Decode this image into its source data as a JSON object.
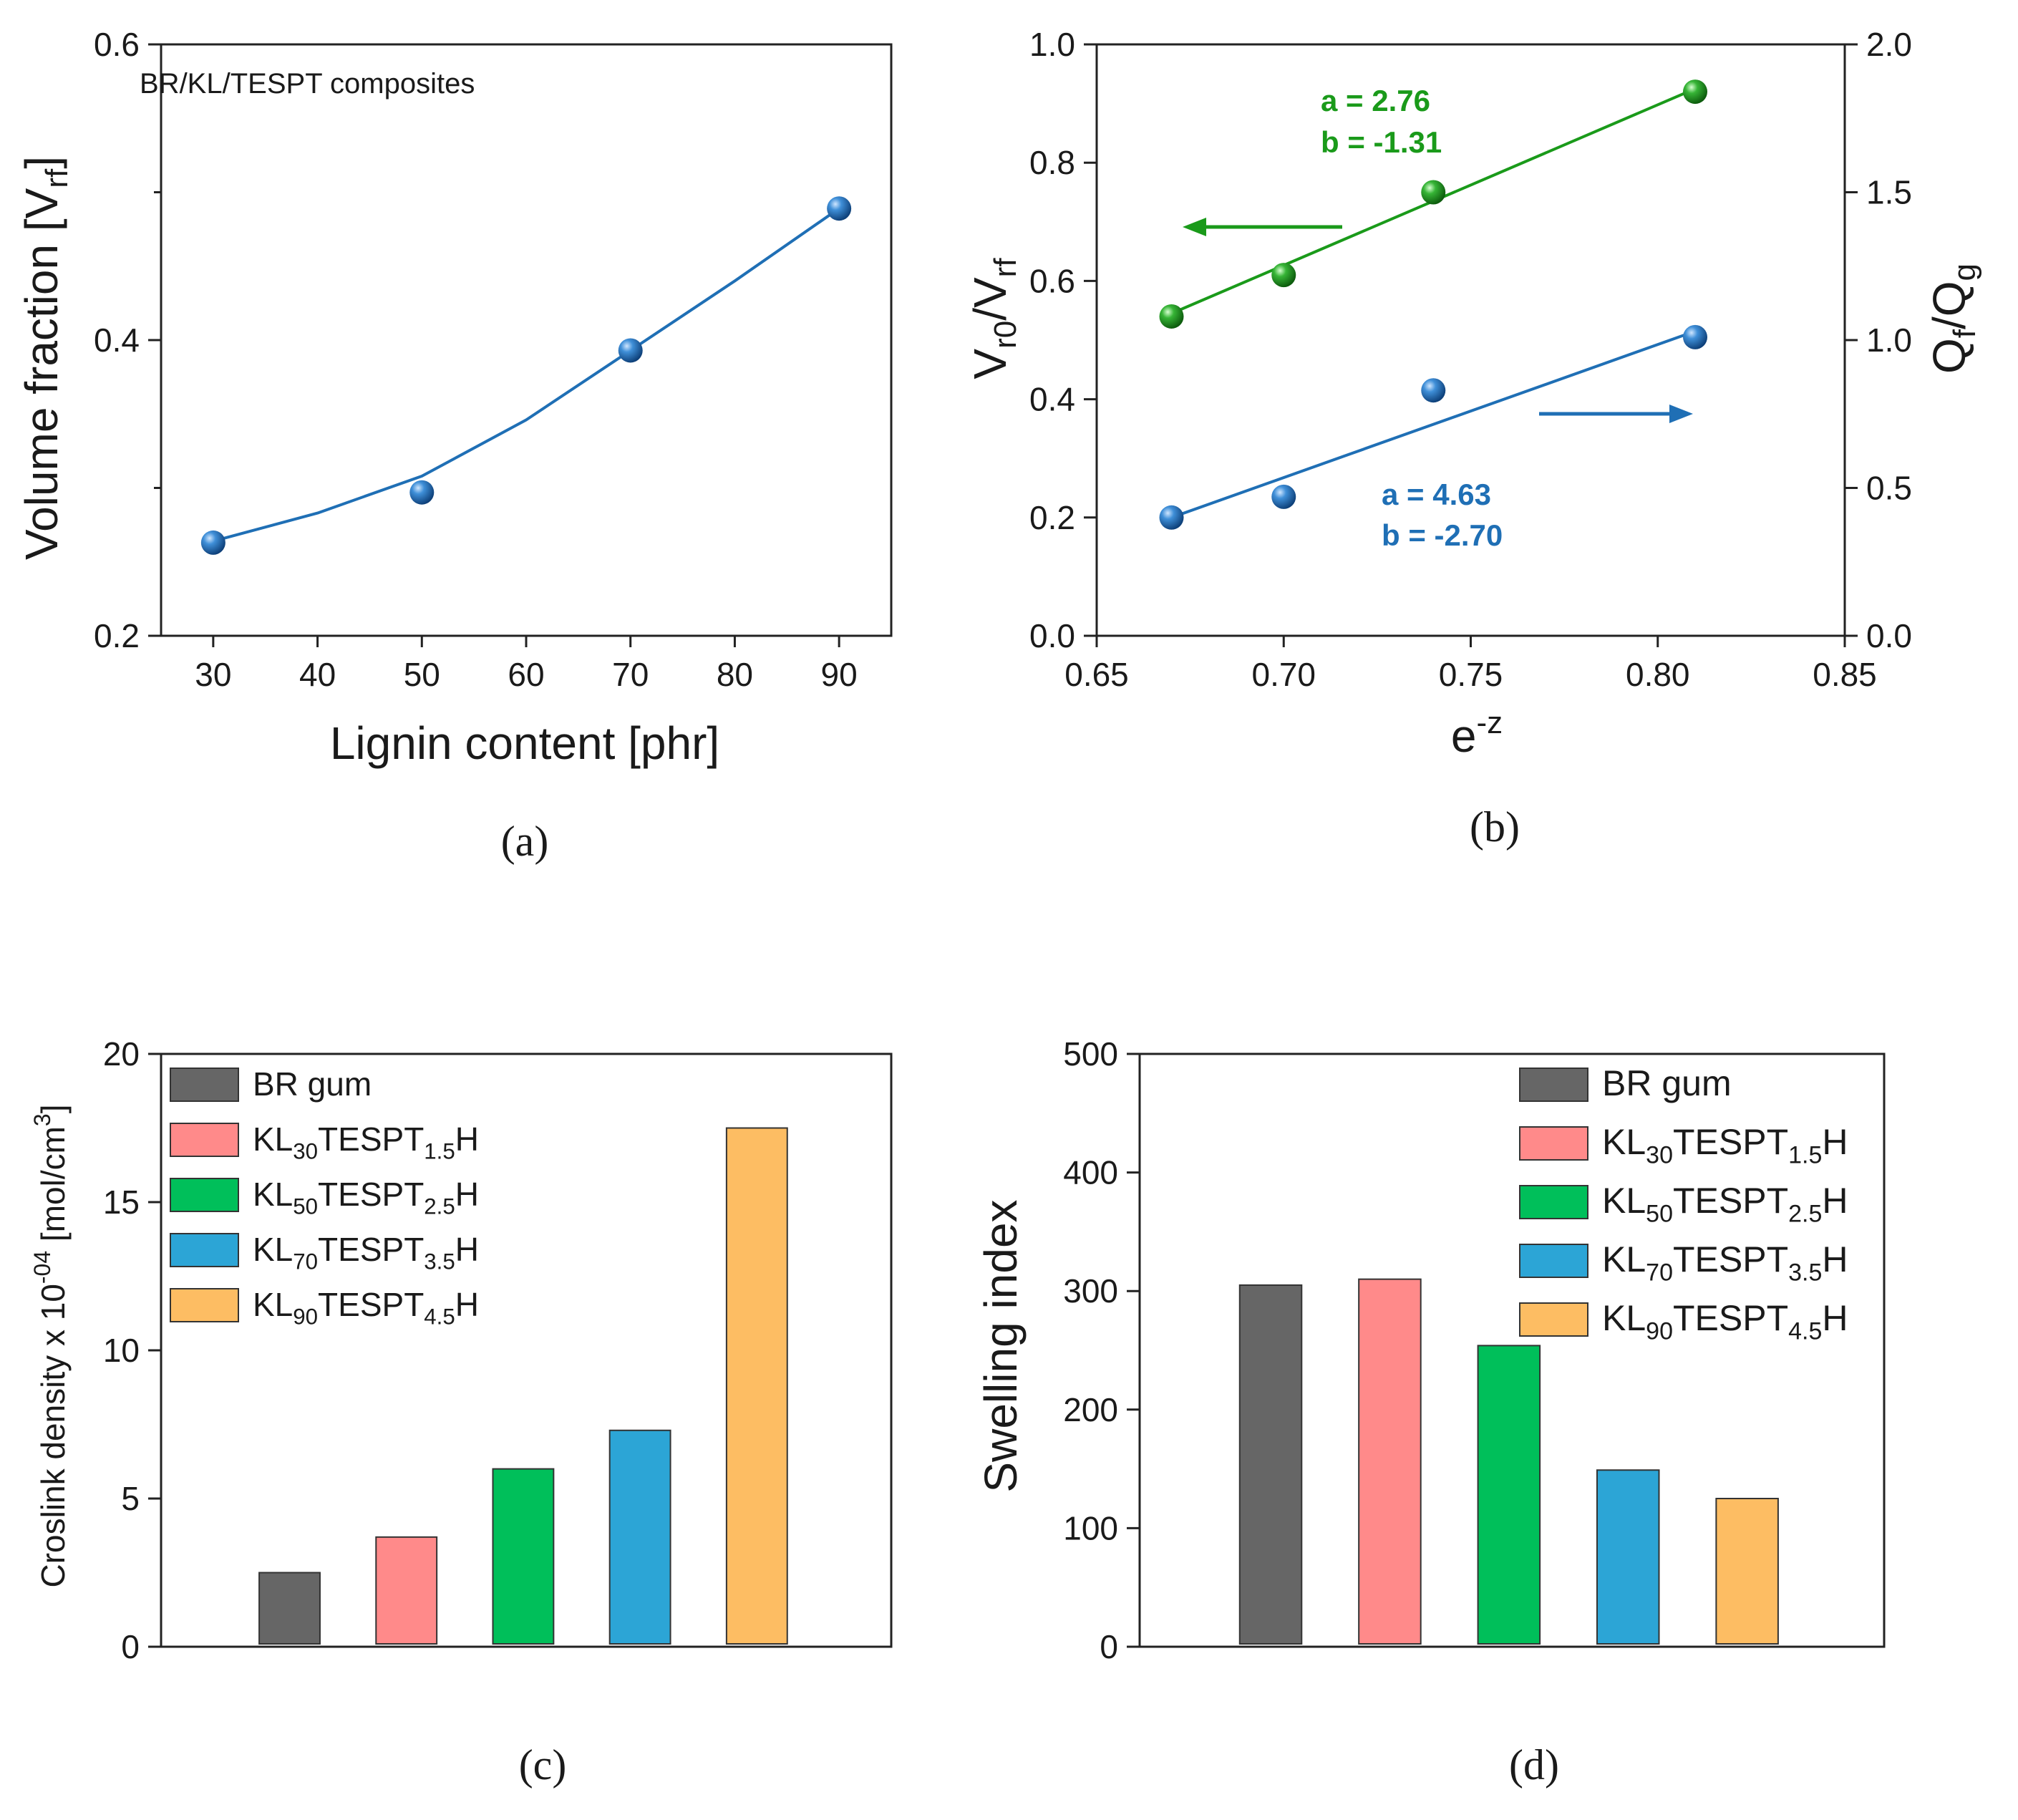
{
  "chart_data": [
    {
      "id": "a",
      "type": "scatter",
      "caption": "(a)",
      "annotation": "BR/KL/TESPT composites",
      "xlabel": "Lignin content [phr]",
      "ylabel": {
        "main": "Volume fraction [V",
        "sub": "rf",
        "tail": "]"
      },
      "xlim": [
        25,
        95
      ],
      "ylim": [
        0.2,
        0.6
      ],
      "xticks": [
        30,
        40,
        50,
        60,
        70,
        80,
        90
      ],
      "yticks_major": [
        0.2,
        0.4,
        0.6
      ],
      "yticks_minor": [
        0.3,
        0.5
      ],
      "colors": {
        "series": "#1f6fb5"
      },
      "series": [
        {
          "x": [
            30,
            50,
            70,
            90
          ],
          "y": [
            0.263,
            0.297,
            0.393,
            0.489
          ]
        }
      ],
      "fit_curve": {
        "x": [
          30,
          40,
          50,
          60,
          70,
          80,
          90
        ],
        "y": [
          0.264,
          0.283,
          0.308,
          0.346,
          0.393,
          0.44,
          0.489
        ]
      }
    },
    {
      "id": "b",
      "type": "scatter",
      "caption": "(b)",
      "xlabel": {
        "main": "e",
        "sup": "-z"
      },
      "ylabel_left": {
        "main": "V",
        "sub1": "r0",
        "mid": "/V",
        "sub2": "rf"
      },
      "ylabel_right": {
        "main": "Q",
        "sub1": "f",
        "mid": "/Q",
        "sub2": "g"
      },
      "xlim": [
        0.65,
        0.85
      ],
      "ylim_left": [
        0.0,
        1.0
      ],
      "ylim_right": [
        0.0,
        2.0
      ],
      "xticks": [
        "0.65",
        "0.70",
        "0.75",
        "0.80",
        "0.85"
      ],
      "yticks_left": [
        "0.0",
        "0.2",
        "0.4",
        "0.6",
        "0.8",
        "1.0"
      ],
      "yticks_right": [
        "0.0",
        "0.5",
        "1.0",
        "1.5",
        "2.0"
      ],
      "colors": {
        "left": "#1a9a1a",
        "right": "#1f6fb5"
      },
      "series": [
        {
          "axis": "left",
          "color": "#1a9a1a",
          "x": [
            0.67,
            0.7,
            0.74,
            0.81
          ],
          "y": [
            0.54,
            0.61,
            0.75,
            0.92
          ],
          "fit": {
            "x": [
              0.67,
              0.81
            ],
            "y": [
              0.545,
              0.925
            ]
          },
          "annotation": [
            "a = 2.76",
            "b = -1.31"
          ]
        },
        {
          "axis": "right",
          "color": "#1f6fb5",
          "x": [
            0.67,
            0.7,
            0.74,
            0.81
          ],
          "y": [
            0.4,
            0.47,
            0.83,
            1.01
          ],
          "fit": {
            "x": [
              0.67,
              0.81
            ],
            "y": [
              0.4,
              1.03
            ]
          },
          "annotation": [
            "a = 4.63",
            "b = -2.70"
          ]
        }
      ]
    },
    {
      "id": "c",
      "type": "bar",
      "caption": "(c)",
      "ylabel": {
        "main": "Croslink density x 10",
        "sup": "-04",
        "tail": " [mol/cm",
        "sup2": "3",
        "end": "]"
      },
      "ylim": [
        0,
        20
      ],
      "yticks": [
        0,
        5,
        10,
        15,
        20
      ],
      "categories": [
        "BR gum",
        "KL30TESPT1.5H",
        "KL50TESPT2.5H",
        "KL70TESPT3.5H",
        "KL90TESPT4.5H"
      ],
      "values": [
        2.5,
        3.7,
        6.0,
        7.3,
        17.5
      ],
      "legend_position": "top-left",
      "legend": [
        {
          "main": "BR gum",
          "color": "#666666"
        },
        {
          "main": "KL",
          "sub1": "30",
          "mid": "TESPT",
          "sub2": "1.5",
          "end": "H",
          "color": "#ff8a8a"
        },
        {
          "main": "KL",
          "sub1": "50",
          "mid": "TESPT",
          "sub2": "2.5",
          "end": "H",
          "color": "#00bf5a"
        },
        {
          "main": "KL",
          "sub1": "70",
          "mid": "TESPT",
          "sub2": "3.5",
          "end": "H",
          "color": "#2ca5d6"
        },
        {
          "main": "KL",
          "sub1": "90",
          "mid": "TESPT",
          "sub2": "4.5",
          "end": "H",
          "color": "#fdbd63"
        }
      ]
    },
    {
      "id": "d",
      "type": "bar",
      "caption": "(d)",
      "ylabel": "Swelling index",
      "ylim": [
        0,
        500
      ],
      "yticks": [
        0,
        100,
        200,
        300,
        400,
        500
      ],
      "categories": [
        "BR gum",
        "KL30TESPT1.5H",
        "KL50TESPT2.5H",
        "KL70TESPT3.5H",
        "KL90TESPT4.5H"
      ],
      "values": [
        305,
        310,
        254,
        149,
        125
      ],
      "legend_position": "top-right",
      "legend": [
        {
          "main": "BR gum",
          "color": "#666666"
        },
        {
          "main": "KL",
          "sub1": "30",
          "mid": "TESPT",
          "sub2": "1.5",
          "end": "H",
          "color": "#ff8a8a"
        },
        {
          "main": "KL",
          "sub1": "50",
          "mid": "TESPT",
          "sub2": "2.5",
          "end": "H",
          "color": "#00bf5a"
        },
        {
          "main": "KL",
          "sub1": "70",
          "mid": "TESPT",
          "sub2": "3.5",
          "end": "H",
          "color": "#2ca5d6"
        },
        {
          "main": "KL",
          "sub1": "90",
          "mid": "TESPT",
          "sub2": "4.5",
          "end": "H",
          "color": "#fdbd63"
        }
      ]
    }
  ]
}
